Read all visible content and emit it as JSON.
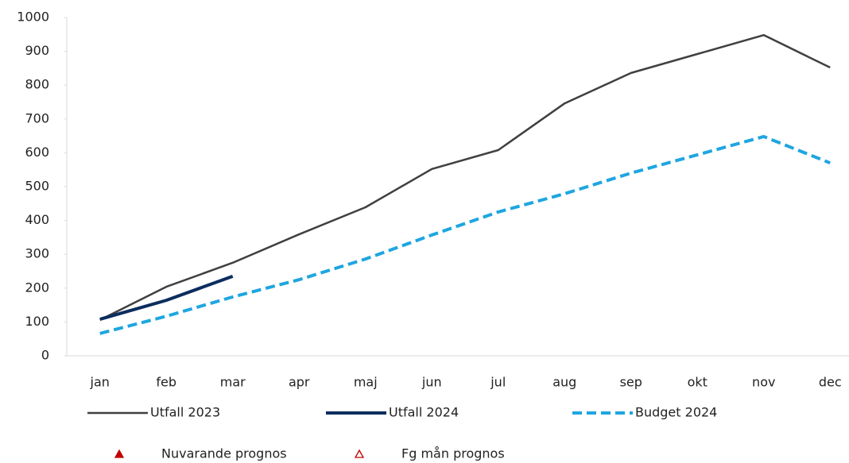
{
  "chart_data": {
    "type": "line",
    "categories": [
      "jan",
      "feb",
      "mar",
      "apr",
      "maj",
      "jun",
      "jul",
      "aug",
      "sep",
      "okt",
      "nov",
      "dec"
    ],
    "series": [
      {
        "name": "Utfall 2023",
        "color": "#404040",
        "line_style": "solid",
        "values": [
          106,
          204,
          275,
          359,
          439,
          552,
          608,
          746,
          836,
          892,
          948,
          852
        ]
      },
      {
        "name": "Utfall 2024",
        "color": "#0c2d5e",
        "line_style": "solid-thick",
        "values": [
          108,
          164,
          235,
          null,
          null,
          null,
          null,
          null,
          null,
          null,
          null,
          null
        ]
      },
      {
        "name": "Budget 2024",
        "color": "#1ea6e0",
        "line_style": "dashed",
        "values": [
          66,
          117,
          174,
          225,
          286,
          357,
          425,
          479,
          540,
          594,
          648,
          570
        ]
      },
      {
        "name": "Nuvarande prognos",
        "color": "#c00000",
        "marker": "triangle",
        "values": [
          null,
          null,
          null,
          null,
          null,
          null,
          null,
          null,
          null,
          null,
          null,
          null
        ]
      },
      {
        "name": "Fg mån prognos",
        "color": "#c00000",
        "marker": "triangle-open",
        "values": [
          null,
          null,
          null,
          null,
          null,
          null,
          null,
          null,
          null,
          null,
          null,
          null
        ]
      }
    ],
    "ylim": [
      0,
      1000
    ],
    "yticks": [
      0,
      100,
      200,
      300,
      400,
      500,
      600,
      700,
      800,
      900,
      1000
    ],
    "grid": false
  }
}
